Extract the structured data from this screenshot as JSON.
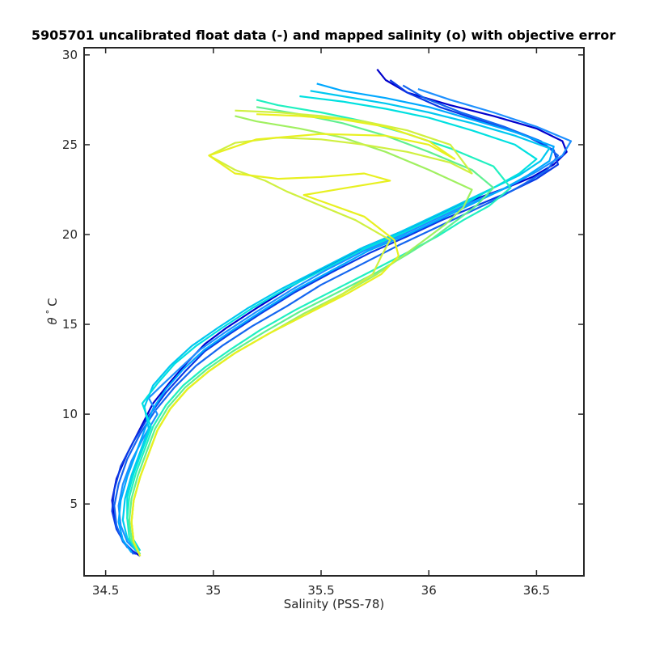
{
  "chart_data": {
    "type": "line",
    "title": "5905701 uncalibrated float data (-) and mapped salinity (o) with objective error",
    "xlabel": "Salinity (PSS-78)",
    "ylabel_symbol": "θ",
    "ylabel_degree": "°",
    "ylabel_unit": "C",
    "xlim": [
      34.4,
      36.72
    ],
    "ylim": [
      1.0,
      30.4
    ],
    "xticks": [
      34.5,
      35,
      35.5,
      36,
      36.5
    ],
    "xtick_labels": [
      "34.5",
      "35",
      "35.5",
      "36",
      "36.5"
    ],
    "yticks": [
      5,
      10,
      15,
      20,
      25,
      30
    ],
    "ytick_labels": [
      "5",
      "10",
      "15",
      "20",
      "25",
      "30"
    ],
    "grid": false,
    "colormap": "jet-like (early profiles dark blue, later profiles cyan to yellow)",
    "colors": [
      "#0000cc",
      "#0a3ae6",
      "#1466f0",
      "#1e90ff",
      "#00a8ff",
      "#00c8f0",
      "#00e0e0",
      "#20f0c0",
      "#60f090",
      "#a0f060",
      "#d0f040",
      "#e8f020"
    ],
    "series": [
      {
        "x": [
          34.66,
          34.6,
          34.56,
          34.54,
          34.53,
          34.55,
          34.6,
          34.66,
          34.72,
          34.8,
          34.88,
          34.96,
          35.06,
          35.2,
          35.36,
          35.52,
          35.7,
          35.88,
          36.04,
          36.2,
          36.36,
          36.48,
          36.58,
          36.64,
          36.62,
          36.5,
          36.3,
          36.1,
          35.9,
          35.8,
          35.76
        ],
        "y": [
          2.1,
          2.6,
          3.4,
          4.2,
          5.2,
          6.4,
          7.8,
          9.2,
          10.6,
          11.8,
          12.9,
          13.9,
          14.8,
          15.9,
          17.1,
          18.2,
          19.3,
          20.2,
          21.1,
          21.9,
          22.6,
          23.2,
          23.9,
          24.6,
          25.2,
          25.9,
          26.6,
          27.2,
          27.9,
          28.6,
          29.2
        ]
      },
      {
        "x": [
          34.64,
          34.59,
          34.55,
          34.53,
          34.54,
          34.57,
          34.63,
          34.7,
          34.78,
          34.87,
          34.96,
          35.08,
          35.22,
          35.38,
          35.55,
          35.73,
          35.9,
          36.06,
          36.22,
          36.38,
          36.5,
          36.6,
          36.58,
          36.45,
          36.25,
          36.05,
          35.9,
          35.82
        ],
        "y": [
          2.2,
          2.8,
          3.6,
          4.6,
          5.8,
          7.1,
          8.5,
          9.9,
          11.2,
          12.4,
          13.5,
          14.5,
          15.6,
          16.8,
          17.9,
          19.0,
          19.9,
          20.8,
          21.6,
          22.4,
          23.1,
          23.9,
          24.7,
          25.5,
          26.3,
          27.1,
          27.9,
          28.6
        ]
      },
      {
        "x": [
          34.63,
          34.58,
          34.55,
          34.54,
          34.56,
          34.6,
          34.66,
          34.73,
          34.82,
          34.92,
          35.04,
          35.18,
          35.34,
          35.5,
          35.68,
          35.86,
          36.02,
          36.18,
          36.32,
          36.44,
          36.55,
          36.6,
          36.52,
          36.35,
          36.15,
          35.98,
          35.88
        ],
        "y": [
          2.2,
          2.9,
          3.8,
          4.9,
          6.1,
          7.5,
          8.9,
          10.2,
          11.5,
          12.7,
          13.8,
          14.9,
          16.0,
          17.2,
          18.3,
          19.4,
          20.3,
          21.2,
          22.0,
          22.8,
          23.6,
          24.4,
          25.2,
          26.0,
          26.8,
          27.6,
          28.3
        ]
      },
      {
        "x": [
          34.65,
          34.6,
          34.57,
          34.56,
          34.58,
          34.62,
          34.68,
          34.74,
          34.7,
          34.76,
          34.84,
          34.94,
          35.06,
          35.2,
          35.36,
          35.52,
          35.7,
          35.88,
          36.04,
          36.2,
          36.36,
          36.5,
          36.62,
          36.66,
          36.5,
          36.3,
          36.1,
          35.95
        ],
        "y": [
          2.3,
          2.9,
          3.8,
          4.9,
          6.1,
          7.4,
          8.8,
          10.0,
          10.9,
          11.6,
          12.5,
          13.6,
          14.6,
          15.7,
          16.9,
          18.0,
          19.1,
          20.0,
          20.9,
          21.8,
          22.6,
          23.5,
          24.4,
          25.2,
          26.0,
          26.8,
          27.5,
          28.1
        ]
      },
      {
        "x": [
          34.62,
          34.58,
          34.56,
          34.57,
          34.6,
          34.64,
          34.68,
          34.72,
          34.78,
          34.86,
          34.96,
          35.08,
          35.22,
          35.38,
          35.55,
          35.72,
          35.9,
          36.06,
          36.2,
          36.34,
          36.46,
          36.56,
          36.58,
          36.4,
          36.2,
          36.0,
          35.8,
          35.6,
          35.48
        ],
        "y": [
          2.3,
          3.0,
          4.0,
          5.2,
          6.5,
          7.8,
          9.1,
          10.3,
          11.4,
          12.5,
          13.6,
          14.6,
          15.7,
          16.9,
          18.0,
          19.1,
          20.0,
          20.9,
          21.7,
          22.5,
          23.3,
          24.1,
          24.9,
          25.7,
          26.4,
          27.1,
          27.6,
          28.0,
          28.4
        ]
      },
      {
        "x": [
          34.64,
          34.6,
          34.58,
          34.59,
          34.62,
          34.66,
          34.7,
          34.68,
          34.72,
          34.8,
          34.9,
          35.02,
          35.16,
          35.32,
          35.5,
          35.68,
          35.86,
          36.02,
          36.16,
          36.3,
          36.42,
          36.52,
          36.56,
          36.4,
          36.2,
          36.0,
          35.8,
          35.6,
          35.45
        ],
        "y": [
          2.4,
          3.1,
          4.1,
          5.3,
          6.6,
          7.9,
          9.2,
          10.4,
          11.6,
          12.7,
          13.8,
          14.8,
          15.9,
          17.0,
          18.1,
          19.2,
          20.1,
          21.0,
          21.8,
          22.6,
          23.3,
          24.1,
          24.8,
          25.5,
          26.2,
          26.8,
          27.3,
          27.7,
          28.0
        ]
      },
      {
        "x": [
          34.66,
          34.62,
          34.6,
          34.6,
          34.63,
          34.67,
          34.71,
          34.67,
          34.74,
          34.82,
          34.92,
          35.04,
          35.18,
          35.34,
          35.52,
          35.7,
          35.88,
          36.04,
          36.18,
          36.3,
          36.42,
          36.5,
          36.4,
          36.2,
          36.0,
          35.8,
          35.6,
          35.4
        ],
        "y": [
          2.4,
          3.2,
          4.2,
          5.4,
          6.7,
          8.0,
          9.3,
          10.6,
          11.7,
          12.8,
          13.8,
          14.8,
          15.9,
          17.0,
          18.1,
          19.2,
          20.1,
          21.0,
          21.8,
          22.6,
          23.4,
          24.2,
          25.0,
          25.8,
          26.5,
          27.0,
          27.4,
          27.7
        ]
      },
      {
        "x": [
          34.65,
          34.61,
          34.6,
          34.61,
          34.64,
          34.68,
          34.72,
          34.78,
          34.86,
          34.96,
          35.08,
          35.22,
          35.38,
          35.56,
          35.74,
          35.9,
          36.04,
          36.16,
          36.28,
          36.38,
          36.3,
          36.1,
          35.9,
          35.7,
          35.5,
          35.3,
          35.2
        ],
        "y": [
          2.3,
          3.1,
          4.2,
          5.4,
          6.7,
          8.0,
          9.3,
          10.5,
          11.6,
          12.6,
          13.6,
          14.7,
          15.8,
          16.9,
          18.0,
          19.0,
          19.9,
          20.8,
          21.6,
          22.6,
          23.8,
          24.8,
          25.6,
          26.3,
          26.8,
          27.2,
          27.5
        ]
      },
      {
        "x": [
          34.66,
          34.62,
          34.61,
          34.62,
          34.65,
          34.69,
          34.73,
          34.79,
          34.87,
          34.97,
          35.09,
          35.24,
          35.4,
          35.58,
          35.76,
          35.9,
          36.02,
          36.12,
          36.22,
          36.3,
          36.2,
          36.0,
          35.8,
          35.6,
          35.4,
          35.2
        ],
        "y": [
          2.2,
          3.0,
          4.1,
          5.3,
          6.6,
          7.9,
          9.2,
          10.4,
          11.5,
          12.5,
          13.5,
          14.6,
          15.7,
          16.8,
          17.9,
          18.9,
          19.8,
          20.7,
          21.6,
          22.6,
          23.6,
          24.6,
          25.5,
          26.2,
          26.7,
          27.1
        ]
      },
      {
        "x": [
          34.66,
          34.63,
          34.62,
          34.63,
          34.66,
          34.7,
          34.74,
          34.8,
          34.88,
          34.98,
          35.1,
          35.26,
          35.42,
          35.6,
          35.76,
          35.88,
          35.98,
          36.08,
          36.16,
          36.2,
          36.0,
          35.8,
          35.6,
          35.4,
          35.2,
          35.1
        ],
        "y": [
          2.1,
          2.9,
          4.0,
          5.2,
          6.5,
          7.8,
          9.1,
          10.3,
          11.4,
          12.4,
          13.4,
          14.5,
          15.6,
          16.7,
          17.8,
          18.8,
          19.7,
          20.6,
          21.5,
          22.5,
          23.6,
          24.6,
          25.4,
          25.9,
          26.3,
          26.6
        ]
      },
      {
        "x": [
          34.66,
          34.63,
          34.62,
          34.63,
          34.66,
          34.7,
          34.74,
          34.8,
          34.88,
          34.98,
          35.1,
          35.26,
          35.44,
          35.6,
          35.74,
          35.78,
          35.82,
          35.66,
          35.5,
          35.34,
          35.24,
          35.1,
          34.98,
          35.1,
          35.3,
          35.5,
          35.7,
          35.9,
          36.1,
          36.2,
          36.1,
          35.9,
          35.7,
          35.5,
          35.3,
          35.1
        ],
        "y": [
          2.1,
          2.9,
          4.0,
          5.2,
          6.5,
          7.8,
          9.1,
          10.3,
          11.4,
          12.4,
          13.4,
          14.5,
          15.6,
          16.7,
          17.8,
          18.8,
          19.7,
          20.8,
          21.6,
          22.4,
          23.0,
          23.6,
          24.4,
          25.1,
          25.4,
          25.3,
          25.0,
          24.6,
          24.0,
          23.4,
          25.0,
          25.8,
          26.3,
          26.6,
          26.8,
          26.9
        ]
      },
      {
        "x": [
          34.66,
          34.63,
          34.62,
          34.63,
          34.66,
          34.7,
          34.74,
          34.8,
          34.88,
          34.98,
          35.1,
          35.26,
          35.44,
          35.62,
          35.78,
          35.86,
          35.84,
          35.7,
          35.42,
          35.62,
          35.82,
          35.7,
          35.5,
          35.3,
          35.1,
          34.98,
          35.2,
          35.5,
          35.8,
          36.0,
          36.12,
          36.0,
          35.8,
          35.6,
          35.4,
          35.2
        ],
        "y": [
          2.1,
          2.9,
          4.0,
          5.2,
          6.5,
          7.8,
          9.1,
          10.3,
          11.4,
          12.4,
          13.4,
          14.5,
          15.6,
          16.7,
          17.8,
          18.8,
          19.7,
          21.0,
          22.2,
          22.6,
          23.0,
          23.4,
          23.2,
          23.1,
          23.4,
          24.4,
          25.3,
          25.6,
          25.5,
          25.0,
          24.2,
          25.2,
          26.0,
          26.4,
          26.6,
          26.7
        ]
      }
    ]
  }
}
